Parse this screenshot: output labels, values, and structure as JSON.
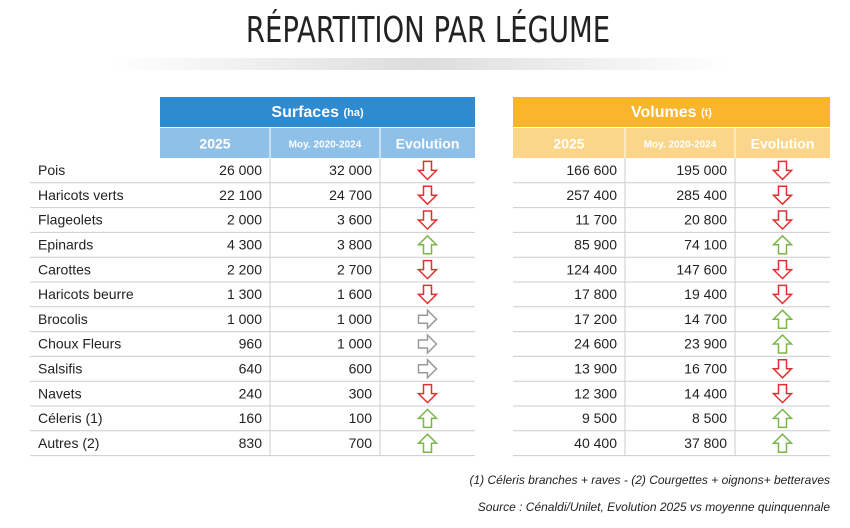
{
  "title": "RÉPARTITION PAR LÉGUME",
  "groups": [
    {
      "title": "Surfaces",
      "unit": "(ha)",
      "color": "#2e8ad1",
      "subcolor": "#8ec0e8",
      "columns": [
        "2025",
        "Moy. 2020-2024",
        "Evolution"
      ]
    },
    {
      "title": "Volumes",
      "unit": "(t)",
      "color": "#f9b52b",
      "subcolor": "#fbd68a",
      "columns": [
        "2025",
        "Moy. 2020-2024",
        "Evolution"
      ]
    }
  ],
  "rows": [
    {
      "name": "Pois",
      "surfaces": [
        "26 000",
        "32 000",
        "down"
      ],
      "volumes": [
        "166 600",
        "195 000",
        "down"
      ]
    },
    {
      "name": "Haricots verts",
      "surfaces": [
        "22 100",
        "24 700",
        "down"
      ],
      "volumes": [
        "257 400",
        "285 400",
        "down"
      ]
    },
    {
      "name": "Flageolets",
      "surfaces": [
        "2 000",
        "3 600",
        "down"
      ],
      "volumes": [
        "11 700",
        "20 800",
        "down"
      ]
    },
    {
      "name": "Epinards",
      "surfaces": [
        "4 300",
        "3 800",
        "up"
      ],
      "volumes": [
        "85 900",
        "74 100",
        "up"
      ]
    },
    {
      "name": "Carottes",
      "surfaces": [
        "2 200",
        "2 700",
        "down"
      ],
      "volumes": [
        "124 400",
        "147 600",
        "down"
      ]
    },
    {
      "name": "Haricots beurre",
      "surfaces": [
        "1 300",
        "1 600",
        "down"
      ],
      "volumes": [
        "17 800",
        "19 400",
        "down"
      ]
    },
    {
      "name": "Brocolis",
      "surfaces": [
        "1 000",
        "1 000",
        "flat"
      ],
      "volumes": [
        "17 200",
        "14 700",
        "up"
      ]
    },
    {
      "name": "Choux Fleurs",
      "surfaces": [
        "960",
        "1 000",
        "flat"
      ],
      "volumes": [
        "24 600",
        "23 900",
        "up"
      ]
    },
    {
      "name": "Salsifis",
      "surfaces": [
        "640",
        "600",
        "flat"
      ],
      "volumes": [
        "13 900",
        "16 700",
        "down"
      ]
    },
    {
      "name": "Navets",
      "surfaces": [
        "240",
        "300",
        "down"
      ],
      "volumes": [
        "12 300",
        "14 400",
        "down"
      ]
    },
    {
      "name": "Céleris (1)",
      "surfaces": [
        "160",
        "100",
        "up"
      ],
      "volumes": [
        "9 500",
        "8 500",
        "up"
      ]
    },
    {
      "name": "Autres (2)",
      "surfaces": [
        "830",
        "700",
        "up"
      ],
      "volumes": [
        "40 400",
        "37 800",
        "up"
      ]
    }
  ],
  "notes": [
    "(1) Céleris branches + raves - (2) Courgettes + oignons+ betteraves",
    "Source : Cénaldi/Unilet, Evolution 2025 vs moyenne quinquennale"
  ]
}
